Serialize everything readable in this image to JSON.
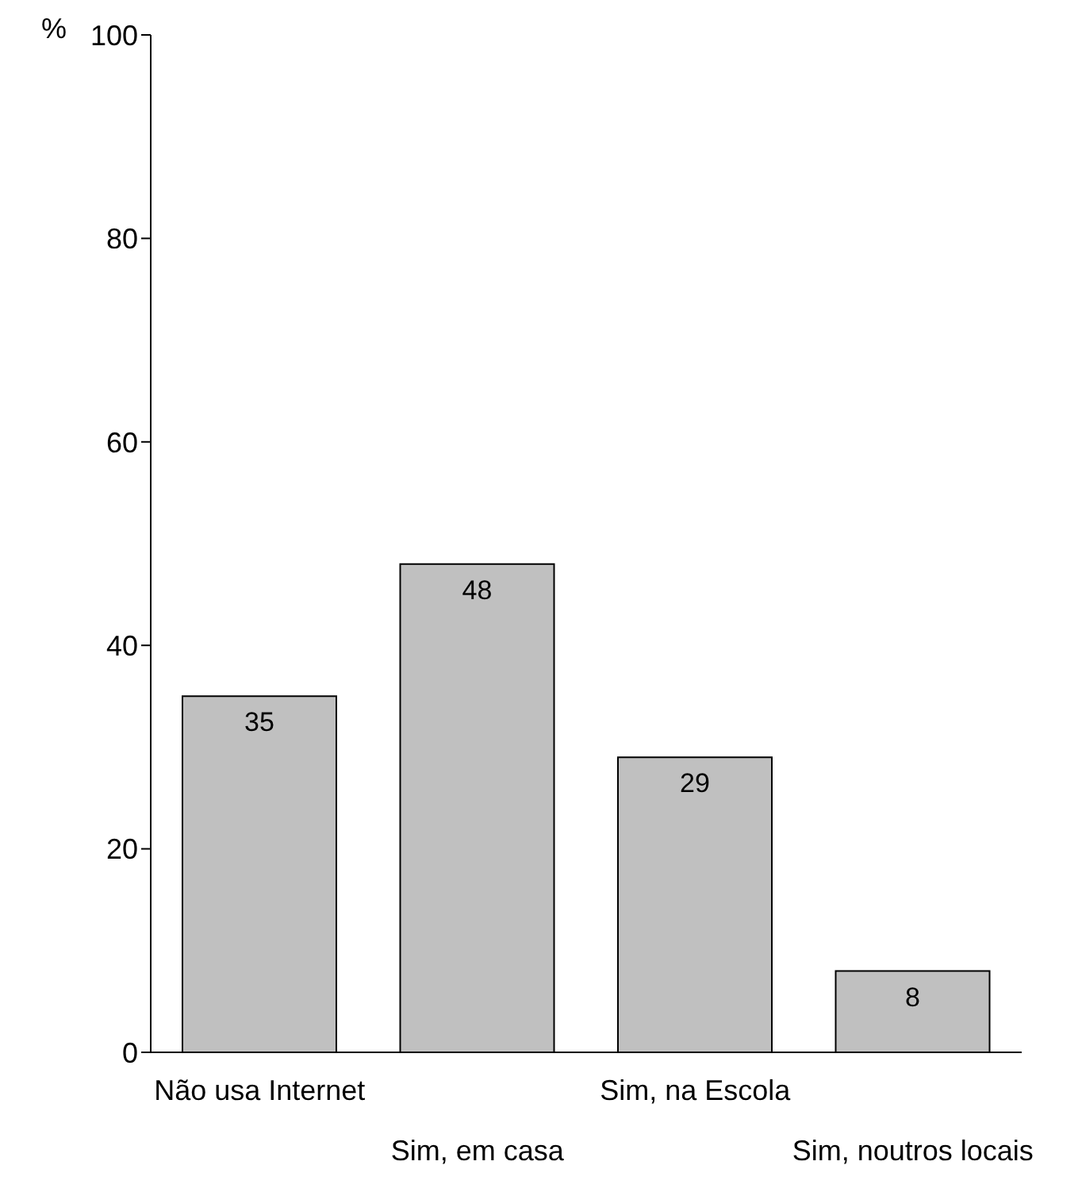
{
  "chart_data": {
    "type": "bar",
    "ylabel": "%",
    "categories": [
      "Não usa Internet",
      "Sim, em casa",
      "Sim, na Escola",
      "Sim, noutros locais"
    ],
    "values": [
      35,
      48,
      29,
      8
    ],
    "color": "#c0c0c0",
    "ylim": [
      0,
      100
    ],
    "yticks": [
      0,
      20,
      40,
      60,
      80,
      100
    ],
    "data_labels": true,
    "grid": false,
    "legend": false
  }
}
